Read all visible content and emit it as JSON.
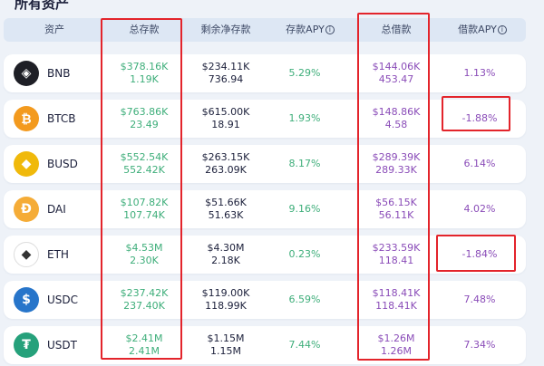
{
  "page_title": "所有资产",
  "columns": {
    "asset": "资产",
    "total_deposit": "总存款",
    "remaining_deposit": "剩余净存款",
    "deposit_apy": "存款APY",
    "total_borrow": "总借款",
    "borrow_apy": "借款APY"
  },
  "colors": {
    "deposit_green": "#3eae7a",
    "borrow_purple": "#8a4cb8",
    "highlight_red": "#e3242b"
  },
  "rows": [
    {
      "asset": "BNB",
      "icon": "bnb-icon",
      "icon_color": "#1e1f26",
      "icon_glyph": "◈",
      "total_deposit": "$378.16K",
      "total_deposit_amount": "1.19K",
      "remaining": "$234.11K",
      "remaining_amount": "736.94",
      "deposit_apy": "5.29%",
      "total_borrow": "$144.06K",
      "total_borrow_amount": "453.47",
      "borrow_apy": "1.13%"
    },
    {
      "asset": "BTCB",
      "icon": "bitcoin-icon",
      "icon_color": "#f39a1e",
      "icon_glyph": "₿",
      "total_deposit": "$763.86K",
      "total_deposit_amount": "23.49",
      "remaining": "$615.00K",
      "remaining_amount": "18.91",
      "deposit_apy": "1.93%",
      "total_borrow": "$148.86K",
      "total_borrow_amount": "4.58",
      "borrow_apy": "-1.88%"
    },
    {
      "asset": "BUSD",
      "icon": "busd-icon",
      "icon_color": "#f0b90b",
      "icon_glyph": "◆",
      "total_deposit": "$552.54K",
      "total_deposit_amount": "552.42K",
      "remaining": "$263.15K",
      "remaining_amount": "263.09K",
      "deposit_apy": "8.17%",
      "total_borrow": "$289.39K",
      "total_borrow_amount": "289.33K",
      "borrow_apy": "6.14%"
    },
    {
      "asset": "DAI",
      "icon": "dai-icon",
      "icon_color": "#f5ac37",
      "icon_glyph": "Đ",
      "total_deposit": "$107.82K",
      "total_deposit_amount": "107.74K",
      "remaining": "$51.66K",
      "remaining_amount": "51.63K",
      "deposit_apy": "9.16%",
      "total_borrow": "$56.15K",
      "total_borrow_amount": "56.11K",
      "borrow_apy": "4.02%"
    },
    {
      "asset": "ETH",
      "icon": "ethereum-icon",
      "icon_color": "#ffffff",
      "icon_glyph": "◆",
      "total_deposit": "$4.53M",
      "total_deposit_amount": "2.30K",
      "remaining": "$4.30M",
      "remaining_amount": "2.18K",
      "deposit_apy": "0.23%",
      "total_borrow": "$233.59K",
      "total_borrow_amount": "118.41",
      "borrow_apy": "-1.84%"
    },
    {
      "asset": "USDC",
      "icon": "usdc-icon",
      "icon_color": "#2775ca",
      "icon_glyph": "$",
      "total_deposit": "$237.42K",
      "total_deposit_amount": "237.40K",
      "remaining": "$119.00K",
      "remaining_amount": "118.99K",
      "deposit_apy": "6.59%",
      "total_borrow": "$118.41K",
      "total_borrow_amount": "118.41K",
      "borrow_apy": "7.48%"
    },
    {
      "asset": "USDT",
      "icon": "tether-icon",
      "icon_color": "#26a17b",
      "icon_glyph": "₮",
      "total_deposit": "$2.41M",
      "total_deposit_amount": "2.41M",
      "remaining": "$1.15M",
      "remaining_amount": "1.15M",
      "deposit_apy": "7.44%",
      "total_borrow": "$1.26M",
      "total_borrow_amount": "1.26M",
      "borrow_apy": "7.34%"
    }
  ]
}
